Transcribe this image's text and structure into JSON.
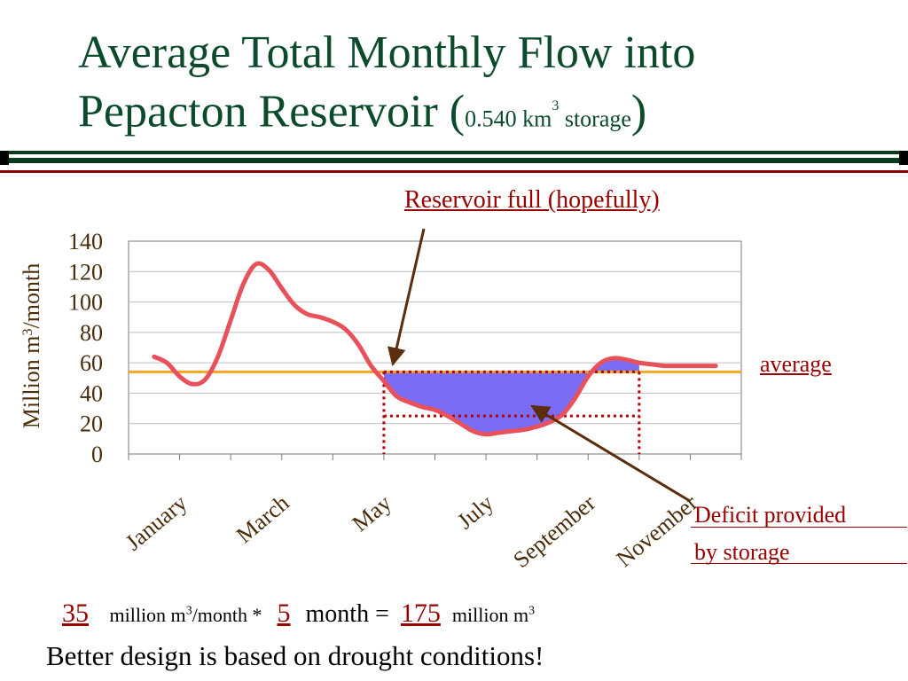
{
  "title": {
    "line1": "Average Total Monthly Flow into",
    "line2_main": "Pepacton Reservoir (",
    "storage_value": "0.540 km",
    "storage_sup": "3",
    "storage_word": " storage",
    "close": ")"
  },
  "annotations": {
    "reservoir_full": "Reservoir full (hopefully)",
    "average": "average",
    "deficit_line1": "Deficit provided",
    "deficit_line2": "by storage"
  },
  "calculation": {
    "value1": "35",
    "unit1_pre": "million m",
    "unit1_sup": "3",
    "unit1_post": "/month *",
    "value2": "5",
    "unit2": "month =",
    "value3": "175",
    "unit3_pre": "million m",
    "unit3_sup": "3"
  },
  "footer": "Better design is based on drought conditions!",
  "colors": {
    "title": "#0b4a2a",
    "flow_line": "#e8505a",
    "average_line": "#f5a623",
    "deficit_fill": "#7b6cf5",
    "annotation": "#990000",
    "axis_text": "#4a2c0a"
  },
  "chart_data": {
    "type": "line",
    "ylabel": "Million m3/month",
    "ylabel_main": "Million m",
    "ylabel_sup": "3",
    "ylabel_post": "/month",
    "ylim": [
      0,
      140
    ],
    "yticks": [
      0,
      20,
      40,
      60,
      80,
      100,
      120,
      140
    ],
    "xlim": [
      0,
      12
    ],
    "xtick_labels": [
      {
        "label": "January",
        "x": 1
      },
      {
        "label": "March",
        "x": 3
      },
      {
        "label": "May",
        "x": 5
      },
      {
        "label": "July",
        "x": 7
      },
      {
        "label": "September",
        "x": 9
      },
      {
        "label": "November",
        "x": 11
      }
    ],
    "grid": true,
    "average": 54,
    "deficit_box": {
      "x_start": 5,
      "x_end": 10,
      "y_low": 25,
      "y_high": 54
    },
    "series": [
      {
        "type": "line",
        "x": [
          0.5,
          0.75,
          1.0,
          1.25,
          1.5,
          1.75,
          2.0,
          2.25,
          2.5,
          2.75,
          3.0,
          3.25,
          3.5,
          3.75,
          4.0,
          4.25,
          4.5,
          4.75,
          5.0,
          5.25,
          5.5,
          5.75,
          6.0,
          6.25,
          6.5,
          6.75,
          7.0,
          7.25,
          7.5,
          7.75,
          8.0,
          8.25,
          8.5,
          8.75,
          9.0,
          9.25,
          9.5,
          9.75,
          10.0,
          10.25,
          10.5,
          10.75,
          11.0,
          11.25,
          11.5
        ],
        "y": [
          64,
          60,
          51,
          46,
          49,
          64,
          88,
          112,
          125,
          121,
          109,
          98,
          92,
          90,
          87,
          82,
          72,
          58,
          48,
          38,
          34,
          31,
          29,
          25,
          20,
          15,
          13,
          14,
          15,
          16,
          18,
          21,
          26,
          37,
          51,
          60,
          63,
          62,
          60,
          59,
          58,
          58,
          58,
          58,
          58
        ]
      }
    ]
  }
}
